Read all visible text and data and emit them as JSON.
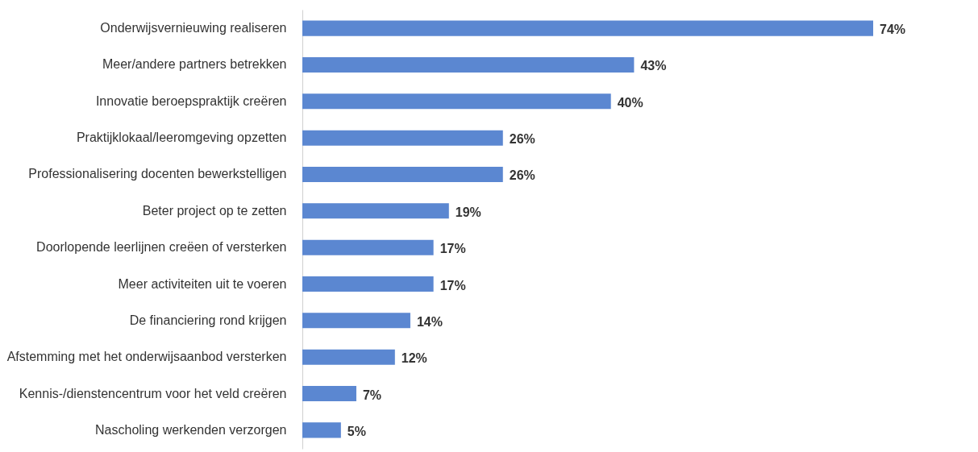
{
  "chart_data": {
    "type": "bar",
    "orientation": "horizontal",
    "categories": [
      "Onderwijsvernieuwing realiseren",
      "Meer/andere partners betrekken",
      "Innovatie beroepspraktijk creëren",
      "Praktijklokaal/leeromgeving opzetten",
      "Professionalisering docenten bewerkstelligen",
      "Beter project op te zetten",
      "Doorlopende leerlijnen creëen of versterken",
      "Meer activiteiten uit te voeren",
      "De financiering rond krijgen",
      "Afstemming met het onderwijsaanbod versterken",
      "Kennis-/dienstencentrum voor het veld creëren",
      "Nascholing werkenden verzorgen"
    ],
    "values": [
      74,
      43,
      40,
      26,
      26,
      19,
      17,
      17,
      14,
      12,
      7,
      5
    ],
    "value_labels": [
      "74%",
      "43%",
      "40%",
      "26%",
      "26%",
      "19%",
      "17%",
      "17%",
      "14%",
      "12%",
      "7%",
      "5%"
    ],
    "color": "#5b87d1"
  }
}
